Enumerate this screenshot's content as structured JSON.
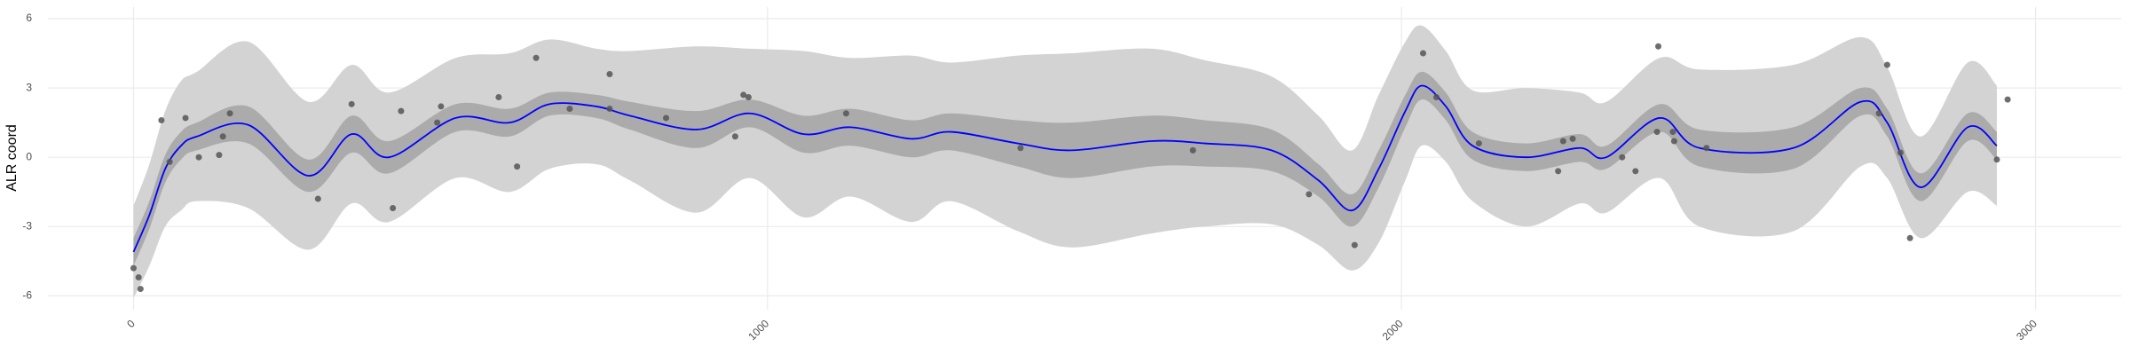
{
  "chart_data": {
    "type": "line",
    "y_label": "ALR coord",
    "xlim": [
      -135,
      3135
    ],
    "ylim": [
      -6.6,
      6.5
    ],
    "xticks": [
      0,
      1000,
      2000,
      3000
    ],
    "yticks": [
      -6,
      -3,
      0,
      3,
      6
    ],
    "grid": true,
    "x": [
      0,
      25,
      50,
      75,
      100,
      181,
      276,
      344,
      403,
      508,
      593,
      656,
      730,
      783,
      888,
      972,
      1057,
      1131,
      1226,
      1289,
      1395,
      1479,
      1605,
      1690,
      1795,
      1869,
      1922,
      1964,
      2006,
      2032,
      2070,
      2112,
      2196,
      2281,
      2323,
      2407,
      2470,
      2618,
      2724,
      2766,
      2819,
      2893,
      2939
    ],
    "bands": [
      {
        "color": "#d3d3d3",
        "lower": [
          -6.1,
          -4.7,
          -3.0,
          -2.3,
          -1.9,
          -2.2,
          -4.0,
          -2.0,
          -2.8,
          -0.9,
          -1.5,
          -0.5,
          -0.3,
          -1.0,
          -2.4,
          -0.9,
          -2.6,
          -1.7,
          -2.8,
          -1.9,
          -3.2,
          -3.9,
          -3.3,
          -3.0,
          -2.9,
          -3.8,
          -4.9,
          -3.7,
          -1.0,
          0.5,
          -0.2,
          -1.9,
          -3.0,
          -2.0,
          -2.4,
          -0.9,
          -3.0,
          -3.2,
          -0.4,
          -0.9,
          -3.5,
          -1.5,
          -2.1
        ],
        "upper": [
          -2.1,
          -0.3,
          2.0,
          3.3,
          3.7,
          5.0,
          2.4,
          4.0,
          2.8,
          4.3,
          4.5,
          5.1,
          4.7,
          4.6,
          4.8,
          4.7,
          4.6,
          4.3,
          4.4,
          4.1,
          4.4,
          4.5,
          4.7,
          4.2,
          3.5,
          1.8,
          0.3,
          2.7,
          5.0,
          5.7,
          4.6,
          2.9,
          3.0,
          2.8,
          2.4,
          4.3,
          3.8,
          4.0,
          5.2,
          3.9,
          0.9,
          4.1,
          3.1
        ]
      },
      {
        "color": "#ababab",
        "lower": [
          -4.7,
          -3.1,
          -1.1,
          -0.1,
          0.3,
          0.6,
          -1.5,
          0.2,
          -0.7,
          1.1,
          0.9,
          1.8,
          1.7,
          1.2,
          0.4,
          1.3,
          0.2,
          0.5,
          0.0,
          0.3,
          -0.4,
          -0.9,
          -0.4,
          -0.4,
          -0.6,
          -1.7,
          -3.0,
          -1.3,
          1.3,
          2.5,
          1.6,
          -0.1,
          -0.6,
          -0.2,
          -0.5,
          1.1,
          -0.4,
          -0.5,
          1.8,
          0.9,
          -1.9,
          0.7,
          -0.1
        ],
        "upper": [
          -3.5,
          -1.9,
          0.1,
          1.1,
          1.5,
          2.2,
          -0.1,
          1.8,
          0.7,
          2.3,
          2.1,
          2.8,
          2.7,
          2.4,
          2.0,
          2.5,
          1.8,
          2.1,
          1.6,
          1.9,
          1.6,
          1.5,
          1.8,
          1.6,
          1.2,
          -0.3,
          -1.6,
          0.3,
          2.7,
          3.7,
          2.8,
          1.1,
          0.6,
          1.0,
          0.5,
          2.3,
          1.2,
          1.3,
          3.0,
          2.1,
          -0.7,
          1.9,
          1.1
        ]
      }
    ],
    "line": {
      "color": "#0000ff",
      "values": [
        -4.1,
        -2.5,
        -0.5,
        0.5,
        0.9,
        1.4,
        -0.8,
        1.0,
        0.0,
        1.7,
        1.5,
        2.3,
        2.2,
        1.8,
        1.2,
        1.9,
        1.0,
        1.3,
        0.8,
        1.1,
        0.6,
        0.3,
        0.7,
        0.6,
        0.3,
        -1.0,
        -2.3,
        -0.5,
        2.0,
        3.1,
        2.2,
        0.5,
        0.0,
        0.4,
        0.0,
        1.7,
        0.4,
        0.4,
        2.4,
        1.5,
        -1.3,
        1.3,
        0.5
      ]
    },
    "points": {
      "color": "#555555",
      "x": [
        0,
        8,
        11,
        44,
        57,
        82,
        103,
        135,
        141,
        152,
        291,
        344,
        409,
        422,
        479,
        485,
        576,
        605,
        635,
        688,
        751,
        751,
        840,
        949,
        962,
        970,
        1124,
        1399,
        1671,
        1854,
        1926,
        2034,
        2055,
        2122,
        2247,
        2255,
        2270,
        2348,
        2369,
        2403,
        2405,
        2428,
        2430,
        2481,
        2753,
        2766,
        2787,
        2802,
        2956,
        2939
      ],
      "y": [
        -4.8,
        -5.2,
        -5.7,
        1.6,
        -0.2,
        1.7,
        0.0,
        0.1,
        0.9,
        1.9,
        -1.8,
        2.3,
        -2.2,
        2.0,
        1.5,
        2.2,
        2.6,
        -0.4,
        4.3,
        2.1,
        2.1,
        3.6,
        1.7,
        0.9,
        2.7,
        2.6,
        1.9,
        0.4,
        0.3,
        -1.6,
        -3.8,
        4.5,
        2.6,
        0.6,
        -0.6,
        0.7,
        0.8,
        0.0,
        -0.6,
        1.1,
        4.8,
        1.1,
        0.7,
        0.4,
        1.9,
        4.0,
        0.2,
        -3.5,
        2.5,
        -0.1
      ]
    }
  }
}
